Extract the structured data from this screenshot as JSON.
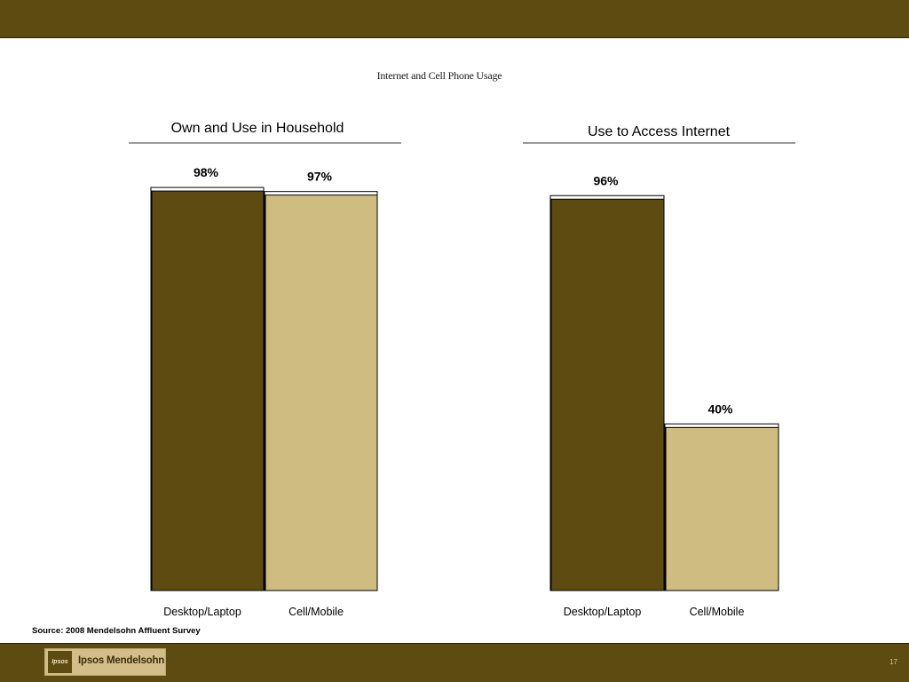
{
  "slide": {
    "title": "Internet and Cell Phone Usage",
    "source": "Source: 2008 Mendelsohn Affluent Survey",
    "page_number": "17",
    "logo": {
      "mark": "Ipsos",
      "text": "Ipsos Mendelsohn"
    }
  },
  "colors": {
    "bar_bar": "#5e4b12",
    "brand_dark": "#5e4b12",
    "desktop_series": "#5e4b12",
    "cell_series": "#cfbc80",
    "background": "#ffffff"
  },
  "chart_data": [
    {
      "type": "bar",
      "title": "Own and Use in Household",
      "categories": [
        "Desktop/Laptop",
        "Cell/Mobile"
      ],
      "values": [
        98,
        97
      ],
      "data_labels": [
        "98%",
        "97%"
      ],
      "ylim": [
        0,
        100
      ],
      "grid": false,
      "legend": "none"
    },
    {
      "type": "bar",
      "title": "Use to Access Internet",
      "categories": [
        "Desktop/Laptop",
        "Cell/Mobile"
      ],
      "values": [
        96,
        40
      ],
      "data_labels": [
        "96%",
        "40%"
      ],
      "ylim": [
        0,
        100
      ],
      "grid": false,
      "legend": "none"
    }
  ]
}
